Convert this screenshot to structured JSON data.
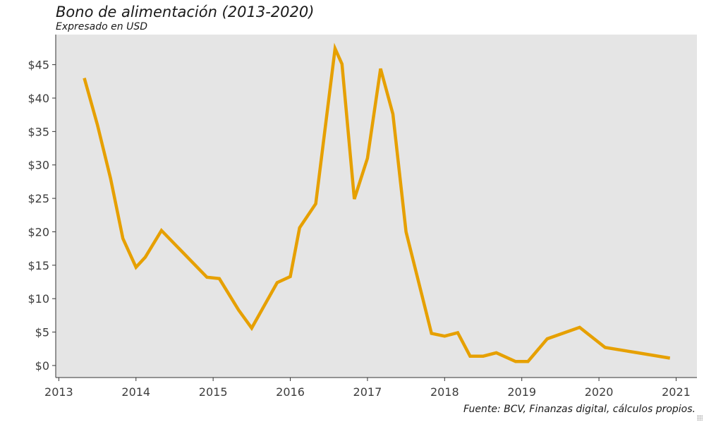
{
  "chart_data": {
    "type": "line",
    "title": "Bono de alimentación (2013-2020)",
    "subtitle": "Expresado en USD",
    "caption": "Fuente: BCV, Finanzas digital, cálculos propios.",
    "xlabel": "",
    "ylabel": "",
    "xlim": [
      2012.96,
      2021.27
    ],
    "ylim": [
      -1.8,
      49.5
    ],
    "x_ticks": [
      2013,
      2014,
      2015,
      2016,
      2017,
      2018,
      2019,
      2020,
      2021
    ],
    "x_tick_labels": [
      "2013",
      "2014",
      "2015",
      "2016",
      "2017",
      "2018",
      "2019",
      "2020",
      "2021"
    ],
    "y_ticks": [
      0,
      5,
      10,
      15,
      20,
      25,
      30,
      35,
      40,
      45
    ],
    "y_tick_labels": [
      "$0",
      "$5",
      "$10",
      "$15",
      "$20",
      "$25",
      "$30",
      "$35",
      "$40",
      "$45"
    ],
    "grid": false,
    "background_color": "#e5e5e5",
    "series": [
      {
        "color": "#e6a000",
        "x": [
          2013.33,
          2013.5,
          2013.67,
          2013.83,
          2014.0,
          2014.12,
          2014.33,
          2014.92,
          2015.08,
          2015.33,
          2015.5,
          2015.83,
          2016.0,
          2016.12,
          2016.33,
          2016.58,
          2016.67,
          2016.83,
          2017.0,
          2017.17,
          2017.33,
          2017.5,
          2017.83,
          2018.0,
          2018.17,
          2018.33,
          2018.5,
          2018.67,
          2018.92,
          2019.08,
          2019.33,
          2019.75,
          2020.08,
          2020.5,
          2020.92
        ],
        "y": [
          43.0,
          36.0,
          28.0,
          19.0,
          14.7,
          16.2,
          20.2,
          13.2,
          13.0,
          8.3,
          5.6,
          12.4,
          13.3,
          20.6,
          24.2,
          47.4,
          45.1,
          24.9,
          31.0,
          44.4,
          37.6,
          20.0,
          4.8,
          4.4,
          4.9,
          1.4,
          1.4,
          1.9,
          0.6,
          0.6,
          4.0,
          5.7,
          2.7,
          1.9,
          1.1
        ]
      }
    ]
  }
}
